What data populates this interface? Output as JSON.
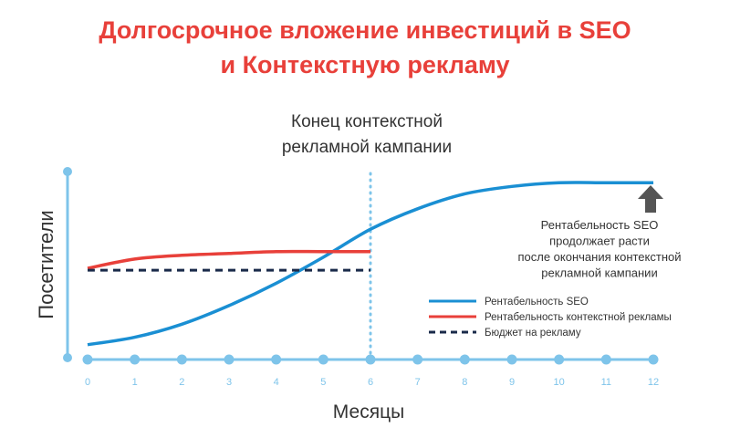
{
  "chart_data": {
    "type": "line",
    "title_line1": "Долгосрочное вложение инвестиций в SEO",
    "title_line2": "и Контекстную рекламу",
    "ylabel": "Посетители",
    "xlabel": "Месяцы",
    "x": [
      0,
      1,
      2,
      3,
      4,
      5,
      6,
      7,
      8,
      9,
      10,
      11,
      12
    ],
    "xlim": [
      0,
      12
    ],
    "ylim": [
      0,
      100
    ],
    "vline": {
      "x": 6,
      "label_line1": "Конец контекстной",
      "label_line2": "рекламной кампании"
    },
    "series": [
      {
        "name": "Рентабельность SEO",
        "color": "#1a8fd3",
        "style": "solid",
        "x": [
          0,
          1,
          2,
          3,
          4,
          5,
          6,
          7,
          8,
          9,
          10,
          11,
          12
        ],
        "values": [
          7,
          11,
          18,
          28,
          40,
          54,
          69,
          80,
          88,
          92,
          94,
          94,
          94
        ]
      },
      {
        "name": "Рентабельность контекстной рекламы",
        "color": "#e8403a",
        "style": "solid",
        "x": [
          0,
          1,
          2,
          3,
          4,
          5,
          6
        ],
        "values": [
          48,
          53,
          55,
          56,
          57,
          57,
          57
        ]
      },
      {
        "name": "Бюджет на рекламу",
        "color": "#1a2a4a",
        "style": "dashed",
        "x": [
          0,
          1,
          2,
          3,
          4,
          5,
          6
        ],
        "values": [
          47,
          47,
          47,
          47,
          47,
          47,
          47
        ]
      }
    ],
    "annotation": {
      "lines": [
        "Рентабельность SEO",
        "продолжает расти",
        "после окончания контекстной",
        "рекламной кампании"
      ],
      "arrow_icon": "up-arrow-icon"
    },
    "legend_position": "right",
    "axis_color": "#7ec4ea",
    "title_color": "#e8403a",
    "grid": false
  }
}
